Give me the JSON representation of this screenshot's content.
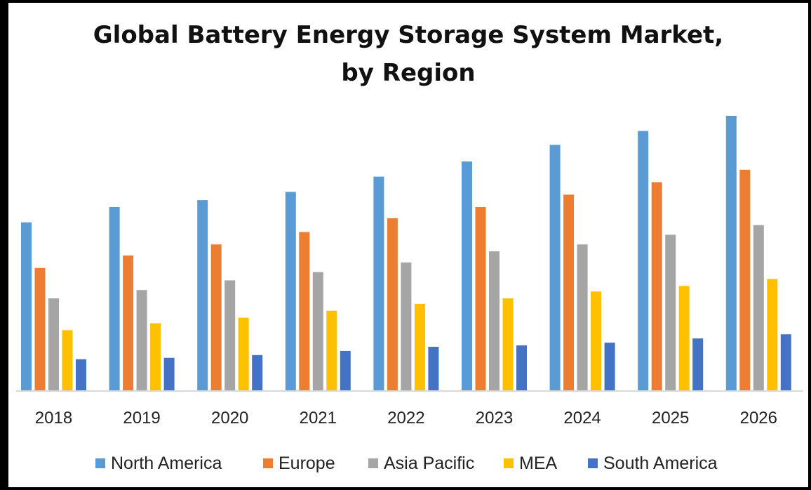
{
  "chart_data": {
    "type": "bar",
    "title": "Global Battery Energy Storage System Market,",
    "title_line2": "by Region",
    "xlabel": "",
    "ylabel": "",
    "ylim": [
      0,
      100
    ],
    "grid": false,
    "legend_position": "bottom",
    "categories": [
      "2018",
      "2019",
      "2020",
      "2021",
      "2022",
      "2023",
      "2024",
      "2025",
      "2026"
    ],
    "series": [
      {
        "name": "North America",
        "color": "#5B9BD5",
        "values": [
          61,
          66.5,
          69,
          72,
          77.5,
          83,
          89,
          94,
          99.5
        ]
      },
      {
        "name": "Europe",
        "color": "#ED7D31",
        "values": [
          44.5,
          49,
          53,
          57.5,
          62.5,
          66.5,
          71,
          75.5,
          80
        ]
      },
      {
        "name": "Asia Pacific",
        "color": "#A5A5A5",
        "values": [
          33.5,
          36.5,
          40,
          43,
          46.5,
          50.5,
          53,
          56.5,
          60
        ]
      },
      {
        "name": "MEA",
        "color": "#FFC000",
        "values": [
          22,
          24.5,
          26.5,
          29,
          31.5,
          33.5,
          36,
          38,
          40.5
        ]
      },
      {
        "name": "South America",
        "color": "#4472C4",
        "values": [
          11.5,
          12,
          13,
          14.5,
          16,
          16.5,
          17.5,
          19,
          20.5
        ]
      }
    ]
  }
}
